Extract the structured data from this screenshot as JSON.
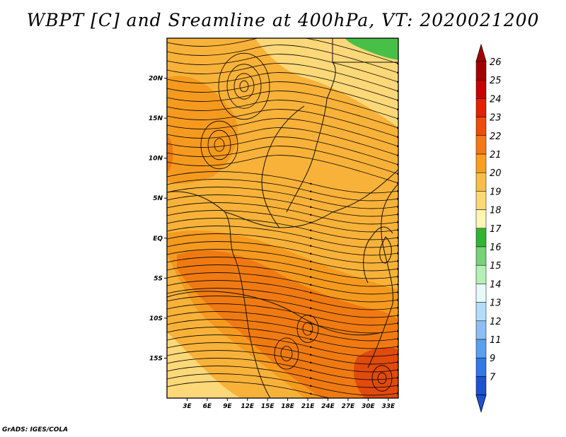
{
  "title": "WBPT [C] and Sreamline at 400hPa, VT: 2020021200",
  "credit": "GrADS: IGES/COLA",
  "map": {
    "variable": "Wet-bulb potential temperature",
    "level": "400hPa",
    "lon_range": [
      0,
      34.5
    ],
    "lat_range": [
      -20,
      25
    ],
    "lat_ticks": [
      {
        "value": 20,
        "label": "20N"
      },
      {
        "value": 15,
        "label": "15N"
      },
      {
        "value": 10,
        "label": "10N"
      },
      {
        "value": 5,
        "label": "5N"
      },
      {
        "value": 0,
        "label": "EQ"
      },
      {
        "value": -5,
        "label": "5S"
      },
      {
        "value": -10,
        "label": "10S"
      },
      {
        "value": -15,
        "label": "15S"
      }
    ],
    "lon_ticks": [
      {
        "value": 3,
        "label": "3E"
      },
      {
        "value": 6,
        "label": "6E"
      },
      {
        "value": 9,
        "label": "9E"
      },
      {
        "value": 12,
        "label": "12E"
      },
      {
        "value": 15,
        "label": "15E"
      },
      {
        "value": 18,
        "label": "18E"
      },
      {
        "value": 21,
        "label": "21E"
      },
      {
        "value": 24,
        "label": "24E"
      },
      {
        "value": 27,
        "label": "27E"
      },
      {
        "value": 30,
        "label": "30E"
      },
      {
        "value": 33,
        "label": "33E"
      }
    ]
  },
  "colorbar": {
    "levels": [
      {
        "label": "26",
        "color": "#a50000"
      },
      {
        "label": "25",
        "color": "#c80000"
      },
      {
        "label": "24",
        "color": "#e61e00"
      },
      {
        "label": "23",
        "color": "#f04b0a"
      },
      {
        "label": "22",
        "color": "#f57814"
      },
      {
        "label": "21",
        "color": "#f7a01e"
      },
      {
        "label": "20",
        "color": "#f9be46"
      },
      {
        "label": "19",
        "color": "#fcd878"
      },
      {
        "label": "18",
        "color": "#fff5b4"
      },
      {
        "label": "17",
        "color": "#32b432"
      },
      {
        "label": "16",
        "color": "#78d278"
      },
      {
        "label": "15",
        "color": "#b4f0b4"
      },
      {
        "label": "14",
        "color": "#e6fafa"
      },
      {
        "label": "13",
        "color": "#b4dcfa"
      },
      {
        "label": "12",
        "color": "#8cbef5"
      },
      {
        "label": "11",
        "color": "#5aa0f0"
      },
      {
        "label": "9",
        "color": "#3278e6"
      },
      {
        "label": "7",
        "color": "#1e50d2"
      }
    ],
    "arrow_colors": {
      "top": "#a50000",
      "bottom": "#1e50d2"
    }
  },
  "colors": {
    "base": "#f8b239",
    "warm": "#f59a1e",
    "hot": "#f07a12",
    "core": "#e04a0c",
    "light": "#fcd878",
    "green": "#48c048"
  }
}
